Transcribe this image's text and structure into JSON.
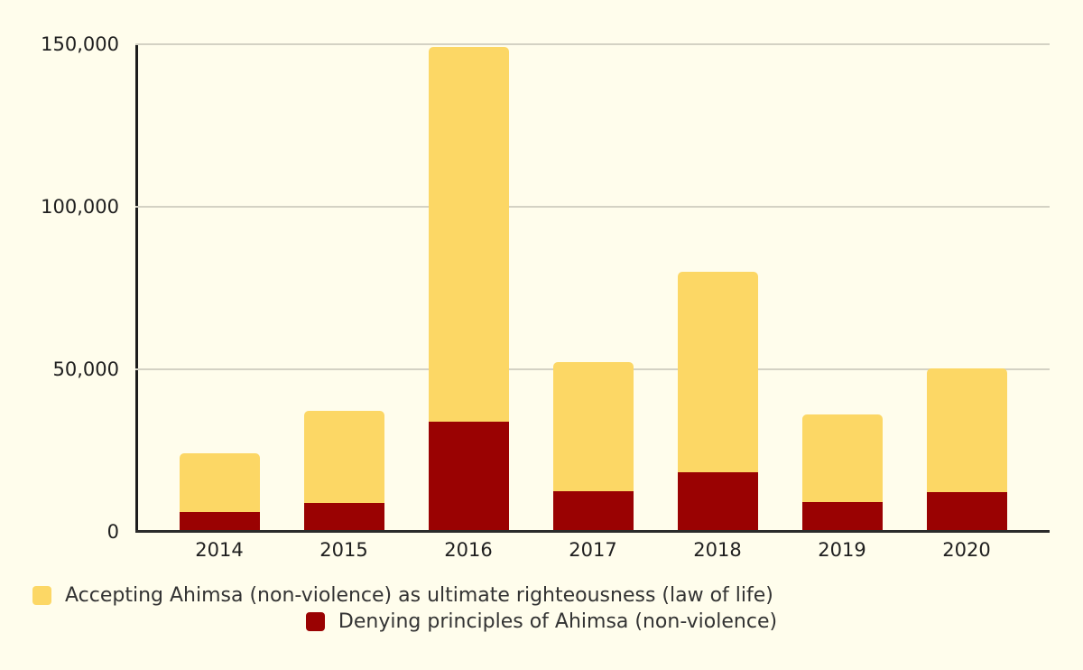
{
  "background_color": "#FFFDEC",
  "axis_color": "#2b2b2b",
  "gridline_color": "#D4D2C4",
  "chart_data": {
    "type": "bar",
    "stacked": true,
    "title": "",
    "xlabel": "",
    "ylabel": "",
    "categories": [
      "2014",
      "2015",
      "2016",
      "2017",
      "2018",
      "2019",
      "2020"
    ],
    "series": [
      {
        "name": "Accepting Ahimsa (non-violence) as ultimate righteousness (law of life)",
        "color": "#FCD765",
        "values": [
          18200,
          28400,
          115500,
          39900,
          61800,
          27100,
          38000
        ]
      },
      {
        "name": "Denying principles of Ahimsa (non-violence)",
        "color": "#9A0202",
        "values": [
          5500,
          8400,
          33200,
          11900,
          17700,
          8600,
          11600
        ]
      }
    ],
    "stack_totals": [
      23700,
      36800,
      148700,
      51800,
      79500,
      35700,
      49600
    ],
    "stack_order_bottom_to_top": [
      "Denying principles of Ahimsa (non-violence)",
      "Accepting Ahimsa (non-violence) as ultimate righteousness (law of life)"
    ],
    "ylim": [
      0,
      150000
    ],
    "yticks": [
      {
        "value": 150000,
        "label": "150,000"
      },
      {
        "value": 100000,
        "label": "100,000"
      },
      {
        "value": 50000,
        "label": "50,000"
      },
      {
        "value": 0,
        "label": "0"
      }
    ],
    "grid": true,
    "legend_position": "bottom"
  }
}
